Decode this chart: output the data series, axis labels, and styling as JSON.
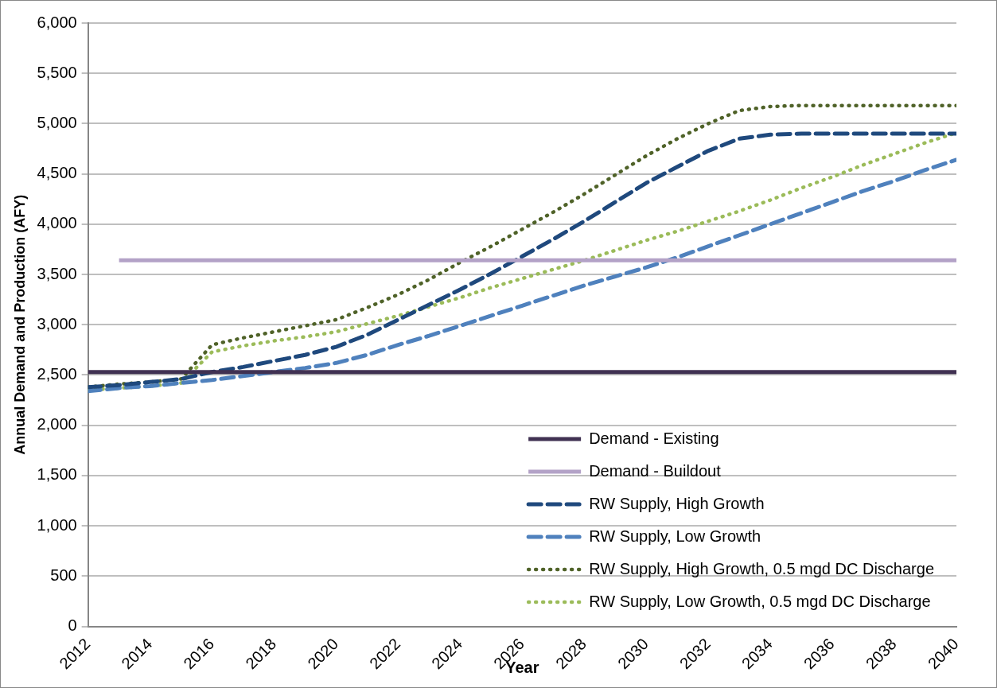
{
  "chart_data": {
    "type": "line",
    "xlabel": "Year",
    "ylabel": "Annual Demand and Production (AFY)",
    "x": [
      2012,
      2013,
      2014,
      2015,
      2016,
      2017,
      2018,
      2019,
      2020,
      2021,
      2022,
      2023,
      2024,
      2025,
      2026,
      2027,
      2028,
      2029,
      2030,
      2031,
      2032,
      2033,
      2034,
      2035,
      2036,
      2037,
      2038,
      2039,
      2040
    ],
    "xlim": [
      2012,
      2040
    ],
    "xticks": [
      2012,
      2014,
      2016,
      2018,
      2020,
      2022,
      2024,
      2026,
      2028,
      2030,
      2032,
      2034,
      2036,
      2038,
      2040
    ],
    "ylim": [
      0,
      6000
    ],
    "yticks": [
      {
        "value": 0,
        "label": "0"
      },
      {
        "value": 500,
        "label": "500"
      },
      {
        "value": 1000,
        "label": "1,000"
      },
      {
        "value": 1500,
        "label": "1,500"
      },
      {
        "value": 2000,
        "label": "2,000"
      },
      {
        "value": 2500,
        "label": "2,500"
      },
      {
        "value": 3000,
        "label": "3,000"
      },
      {
        "value": 3500,
        "label": "3,500"
      },
      {
        "value": 4000,
        "label": "4,000"
      },
      {
        "value": 4500,
        "label": "4,500"
      },
      {
        "value": 5000,
        "label": "5,000"
      },
      {
        "value": 5500,
        "label": "5,500"
      },
      {
        "value": 6000,
        "label": "6,000"
      }
    ],
    "grid": "y",
    "legend": "bottom right",
    "marker": "none",
    "series": [
      {
        "name": "Demand - Existing",
        "color": "#403152",
        "line_style": "solid",
        "values": [
          2530,
          2530,
          2530,
          2530,
          2530,
          2530,
          2530,
          2530,
          2530,
          2530,
          2530,
          2530,
          2530,
          2530,
          2530,
          2530,
          2530,
          2530,
          2530,
          2530,
          2530,
          2530,
          2530,
          2530,
          2530,
          2530,
          2530,
          2530,
          2530
        ]
      },
      {
        "name": "Demand - Buildout",
        "color": "#b3a2c7",
        "line_style": "solid",
        "values": [
          null,
          3640,
          3640,
          3640,
          3640,
          3640,
          3640,
          3640,
          3640,
          3640,
          3640,
          3640,
          3640,
          3640,
          3640,
          3640,
          3640,
          3640,
          3640,
          3640,
          3640,
          3640,
          3640,
          3640,
          3640,
          3640,
          3640,
          3640,
          3640
        ]
      },
      {
        "name": "RW Supply, High Growth",
        "color": "#1f497d",
        "line_style": "dashed",
        "values": [
          2380,
          2400,
          2430,
          2460,
          2530,
          2580,
          2640,
          2700,
          2780,
          2900,
          3050,
          3200,
          3350,
          3510,
          3680,
          3850,
          4030,
          4220,
          4410,
          4570,
          4730,
          4850,
          4890,
          4900,
          4900,
          4900,
          4900,
          4900,
          4900
        ]
      },
      {
        "name": "RW Supply, Low Growth",
        "color": "#4f81bd",
        "line_style": "dashed",
        "values": [
          2340,
          2370,
          2390,
          2420,
          2450,
          2490,
          2530,
          2570,
          2620,
          2700,
          2800,
          2890,
          2990,
          3090,
          3190,
          3290,
          3390,
          3480,
          3570,
          3670,
          3780,
          3890,
          4000,
          4110,
          4220,
          4330,
          4430,
          4540,
          4640
        ]
      },
      {
        "name": "RW Supply, High Growth, 0.5 mgd DC Discharge",
        "color": "#4f6228",
        "line_style": "dotted",
        "values": [
          2380,
          2410,
          2430,
          2460,
          2800,
          2870,
          2930,
          2990,
          3050,
          3170,
          3300,
          3450,
          3620,
          3780,
          3950,
          4120,
          4300,
          4490,
          4680,
          4850,
          5000,
          5130,
          5170,
          5180,
          5180,
          5180,
          5180,
          5180,
          5180
        ]
      },
      {
        "name": "RW Supply, Low Growth, 0.5 mgd DC Discharge",
        "color": "#9bbb59",
        "line_style": "dotted",
        "values": [
          2350,
          2370,
          2390,
          2420,
          2730,
          2790,
          2840,
          2880,
          2930,
          3010,
          3090,
          3180,
          3270,
          3370,
          3460,
          3550,
          3640,
          3740,
          3840,
          3930,
          4030,
          4130,
          4240,
          4360,
          4470,
          4590,
          4700,
          4810,
          4910
        ]
      }
    ]
  }
}
